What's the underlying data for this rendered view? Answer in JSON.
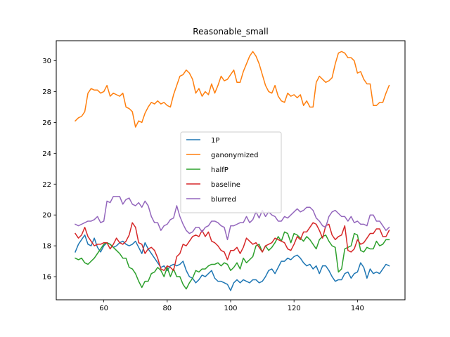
{
  "chart_data": {
    "type": "line",
    "title": "Reasonable_small",
    "xlabel": "",
    "ylabel": "",
    "xlim": [
      45,
      155
    ],
    "ylim": [
      14.5,
      31.3
    ],
    "xticks": [
      60,
      80,
      100,
      120,
      140
    ],
    "yticks": [
      16,
      18,
      20,
      22,
      24,
      26,
      28,
      30
    ],
    "grid": false,
    "legend_position": "center",
    "x": [
      51,
      52,
      53,
      54,
      55,
      56,
      57,
      58,
      59,
      60,
      61,
      62,
      63,
      64,
      65,
      66,
      67,
      68,
      69,
      70,
      71,
      72,
      73,
      74,
      75,
      76,
      77,
      78,
      79,
      80,
      81,
      82,
      83,
      84,
      85,
      86,
      87,
      88,
      89,
      90,
      91,
      92,
      93,
      94,
      95,
      96,
      97,
      98,
      99,
      100,
      101,
      102,
      103,
      104,
      105,
      106,
      107,
      108,
      109,
      110,
      111,
      112,
      113,
      114,
      115,
      116,
      117,
      118,
      119,
      120,
      121,
      122,
      123,
      124,
      125,
      126,
      127,
      128,
      129,
      130,
      131,
      132,
      133,
      134,
      135,
      136,
      137,
      138,
      139,
      140,
      141,
      142,
      143,
      144,
      145,
      146,
      147,
      148,
      149,
      150
    ],
    "series": [
      {
        "name": "1P",
        "color": "#1f77b4",
        "values": [
          17.6,
          18.1,
          18.4,
          18.7,
          18.1,
          18.0,
          18.5,
          17.9,
          17.6,
          18.0,
          18.2,
          18.1,
          17.9,
          18.0,
          18.2,
          18.3,
          18.1,
          18.0,
          18.1,
          18.3,
          17.9,
          17.5,
          18.2,
          17.8,
          17.5,
          17.2,
          16.9,
          16.6,
          16.7,
          16.4,
          16.7,
          16.8,
          16.7,
          16.8,
          17.0,
          16.4,
          16.0,
          15.9,
          15.6,
          15.8,
          16.1,
          16.0,
          16.2,
          16.4,
          15.9,
          15.7,
          15.7,
          15.6,
          15.5,
          15.1,
          15.6,
          15.8,
          15.6,
          15.8,
          15.7,
          15.6,
          15.8,
          15.8,
          15.6,
          15.7,
          16.0,
          16.4,
          16.5,
          16.2,
          16.6,
          17.0,
          17.0,
          17.2,
          17.1,
          17.3,
          17.4,
          17.2,
          16.9,
          16.7,
          16.8,
          16.5,
          16.7,
          16.2,
          16.7,
          16.7,
          16.4,
          16.0,
          15.7,
          15.8,
          15.8,
          16.2,
          16.3,
          15.9,
          16.2,
          16.3,
          16.9,
          16.6,
          15.9,
          16.5,
          16.2,
          16.3,
          16.2,
          16.5,
          16.8,
          16.7
        ]
      },
      {
        "name": "ganonymized",
        "color": "#ff7f0e",
        "values": [
          26.1,
          26.3,
          26.4,
          26.7,
          27.9,
          28.2,
          28.1,
          28.1,
          27.9,
          28.0,
          28.4,
          27.7,
          27.9,
          27.8,
          27.7,
          27.9,
          27.0,
          26.9,
          26.7,
          25.7,
          26.1,
          26.0,
          26.6,
          27.0,
          27.3,
          27.2,
          27.4,
          27.2,
          27.3,
          27.1,
          27.0,
          27.8,
          28.4,
          29.0,
          29.1,
          29.4,
          29.2,
          28.8,
          27.9,
          28.2,
          27.7,
          28.0,
          27.8,
          28.5,
          27.9,
          28.4,
          29.0,
          28.7,
          28.8,
          29.1,
          29.4,
          28.6,
          28.6,
          29.3,
          29.8,
          30.3,
          30.6,
          30.3,
          29.8,
          29.1,
          28.4,
          28.0,
          27.9,
          28.4,
          27.7,
          27.4,
          27.3,
          27.9,
          27.7,
          27.8,
          27.6,
          27.8,
          27.1,
          27.4,
          27.0,
          27.0,
          28.6,
          29.0,
          28.8,
          28.6,
          28.7,
          28.9,
          29.8,
          30.5,
          30.6,
          30.5,
          30.2,
          30.2,
          30.0,
          29.2,
          29.3,
          28.8,
          28.5,
          28.5,
          27.1,
          27.1,
          27.3,
          27.3,
          27.9,
          28.4
        ]
      },
      {
        "name": "halfP",
        "color": "#2ca02c",
        "values": [
          17.2,
          17.1,
          17.2,
          16.9,
          16.8,
          17.0,
          17.2,
          17.5,
          17.8,
          18.1,
          18.2,
          18.1,
          17.9,
          17.7,
          17.5,
          17.2,
          17.2,
          16.6,
          16.5,
          16.2,
          15.7,
          15.3,
          15.7,
          15.7,
          16.2,
          16.3,
          16.6,
          16.4,
          16.0,
          16.6,
          16.0,
          16.5,
          16.0,
          16.0,
          15.5,
          15.2,
          15.6,
          15.9,
          16.4,
          16.3,
          16.5,
          16.5,
          16.7,
          16.8,
          16.8,
          16.9,
          16.7,
          16.9,
          16.8,
          16.4,
          16.6,
          16.9,
          16.5,
          17.2,
          16.9,
          17.1,
          17.3,
          18.0,
          18.1,
          17.6,
          18.0,
          17.7,
          17.9,
          18.2,
          18.6,
          18.3,
          18.9,
          18.8,
          18.2,
          18.8,
          18.7,
          18.5,
          18.3,
          18.6,
          18.4,
          18.1,
          17.8,
          18.4,
          18.6,
          18.7,
          18.3,
          18.0,
          17.9,
          16.3,
          16.5,
          17.8,
          17.9,
          18.0,
          18.8,
          18.7,
          17.7,
          17.6,
          17.9,
          17.8,
          17.8,
          18.3,
          18.0,
          18.1,
          18.4,
          18.4
        ]
      },
      {
        "name": "baseline",
        "color": "#d62728",
        "values": [
          18.8,
          18.5,
          18.7,
          19.2,
          18.6,
          18.3,
          18.0,
          18.1,
          18.1,
          18.2,
          18.2,
          17.8,
          18.1,
          18.5,
          18.2,
          18.1,
          18.3,
          18.7,
          19.5,
          19.2,
          18.2,
          18.1,
          17.5,
          17.8,
          17.9,
          17.7,
          17.2,
          16.5,
          16.4,
          16.7,
          16.6,
          16.4,
          17.3,
          17.5,
          18.1,
          18.0,
          18.3,
          18.6,
          18.7,
          18.6,
          19.0,
          18.6,
          18.9,
          18.3,
          18.2,
          18.0,
          17.7,
          17.6,
          17.1,
          17.7,
          17.7,
          17.9,
          17.5,
          17.9,
          18.5,
          18.3,
          18.1,
          18.2,
          17.9,
          17.6,
          18.0,
          18.1,
          18.2,
          18.5,
          18.4,
          18.3,
          18.2,
          17.8,
          17.7,
          18.1,
          18.6,
          18.4,
          18.9,
          18.9,
          19.2,
          19.5,
          19.4,
          19.0,
          18.5,
          19.3,
          19.4,
          18.7,
          18.4,
          18.6,
          18.7,
          19.3,
          17.7,
          17.6,
          17.8,
          18.4,
          18.1,
          18.2,
          18.5,
          18.8,
          18.8,
          19.1,
          19.1,
          18.6,
          18.6,
          19.0
        ]
      },
      {
        "name": "blurred",
        "color": "#9467bd",
        "values": [
          19.4,
          19.3,
          19.4,
          19.5,
          19.6,
          19.6,
          19.7,
          19.9,
          19.5,
          19.6,
          20.9,
          20.8,
          21.2,
          21.2,
          21.2,
          20.7,
          21.0,
          21.1,
          20.7,
          20.6,
          20.8,
          20.5,
          20.9,
          20.6,
          19.9,
          19.5,
          19.5,
          19.0,
          19.3,
          19.4,
          19.7,
          19.8,
          20.6,
          19.9,
          19.4,
          19.0,
          18.8,
          18.9,
          19.2,
          19.2,
          18.9,
          19.2,
          19.3,
          19.6,
          19.6,
          19.5,
          19.3,
          19.2,
          18.4,
          19.3,
          19.3,
          19.4,
          19.5,
          19.5,
          19.9,
          19.5,
          19.7,
          20.2,
          19.8,
          20.3,
          19.9,
          20.2,
          20.0,
          19.9,
          19.6,
          19.6,
          19.9,
          19.8,
          20.0,
          20.2,
          20.4,
          20.2,
          20.3,
          20.5,
          20.5,
          20.3,
          19.8,
          19.6,
          19.3,
          19.2,
          19.9,
          20.2,
          20.3,
          20.1,
          19.9,
          19.9,
          19.6,
          19.9,
          19.5,
          19.6,
          19.4,
          19.4,
          19.3,
          20.0,
          20.0,
          19.6,
          19.6,
          19.3,
          19.0,
          19.2
        ]
      }
    ]
  }
}
